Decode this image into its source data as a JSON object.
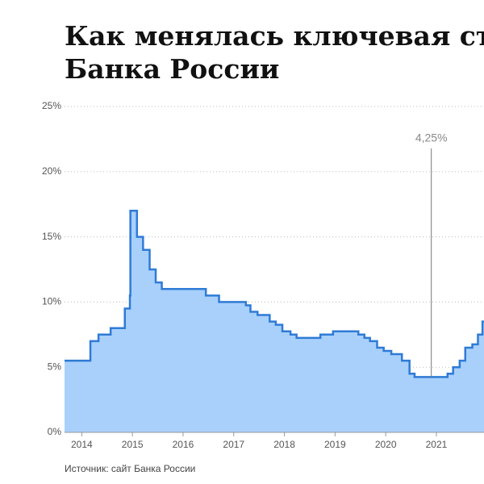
{
  "chart_data": {
    "type": "step-area",
    "title_lines": [
      "Как менялась ключевая ст",
      "Банка России"
    ],
    "source": "Источник: сайт Банка России",
    "color": "#2f7bd6",
    "fill": "#a8d0fb",
    "grid": true,
    "xlim": [
      2013.66,
      2021.94
    ],
    "xticks": [
      2014,
      2015,
      2016,
      2017,
      2018,
      2019,
      2020,
      2021
    ],
    "ylim": [
      0,
      25
    ],
    "yticks": [
      {
        "value": 0,
        "label": "0%"
      },
      {
        "value": 5,
        "label": "5%"
      },
      {
        "value": 10,
        "label": "10%"
      },
      {
        "value": 15,
        "label": "15%"
      },
      {
        "value": 20,
        "label": "20%"
      },
      {
        "value": 25,
        "label": "25%"
      }
    ],
    "x": [
      2013.66,
      2014.17,
      2014.33,
      2014.57,
      2014.85,
      2014.95,
      2014.96,
      2015.09,
      2015.21,
      2015.34,
      2015.46,
      2015.58,
      2016.45,
      2016.71,
      2017.24,
      2017.33,
      2017.47,
      2017.71,
      2017.83,
      2017.96,
      2018.12,
      2018.24,
      2018.71,
      2018.96,
      2019.46,
      2019.58,
      2019.69,
      2019.83,
      2019.96,
      2020.11,
      2020.32,
      2020.47,
      2020.57,
      2021.22,
      2021.33,
      2021.46,
      2021.57,
      2021.71,
      2021.82,
      2021.91
    ],
    "values": [
      5.5,
      7,
      7.5,
      8,
      9.5,
      10.5,
      17,
      15,
      14,
      12.5,
      11.5,
      11,
      10.5,
      10,
      9.75,
      9.25,
      9,
      8.5,
      8.25,
      7.75,
      7.5,
      7.25,
      7.5,
      7.75,
      7.5,
      7.25,
      7,
      6.5,
      6.25,
      6,
      5.5,
      4.5,
      4.25,
      4.5,
      5,
      5.5,
      6.5,
      6.75,
      7.5,
      8.5
    ],
    "annotation": {
      "label": "4,25%",
      "x": 2020.9,
      "value": 4.25
    }
  }
}
